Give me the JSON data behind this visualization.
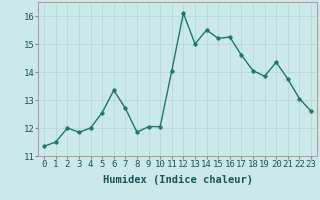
{
  "x": [
    0,
    1,
    2,
    3,
    4,
    5,
    6,
    7,
    8,
    9,
    10,
    11,
    12,
    13,
    14,
    15,
    16,
    17,
    18,
    19,
    20,
    21,
    22,
    23
  ],
  "y": [
    11.35,
    11.5,
    12.0,
    11.85,
    12.0,
    12.55,
    13.35,
    12.7,
    11.85,
    12.05,
    12.05,
    14.05,
    16.1,
    15.0,
    15.5,
    15.2,
    15.25,
    14.6,
    14.05,
    13.85,
    14.35,
    13.75,
    13.05,
    12.6
  ],
  "line_color": "#1a7a6a",
  "marker": "o",
  "marker_size": 2.5,
  "bg_color": "#cce9e9",
  "grid_color": "#b8d8d8",
  "axis_color": "#888888",
  "xlabel": "Humidex (Indice chaleur)",
  "ylabel": "",
  "xlim": [
    -0.5,
    23.5
  ],
  "ylim": [
    11,
    16.5
  ],
  "yticks": [
    11,
    12,
    13,
    14,
    15,
    16
  ],
  "xticks": [
    0,
    1,
    2,
    3,
    4,
    5,
    6,
    7,
    8,
    9,
    10,
    11,
    12,
    13,
    14,
    15,
    16,
    17,
    18,
    19,
    20,
    21,
    22,
    23
  ],
  "xlabel_fontsize": 7.5,
  "tick_fontsize": 6.5,
  "line_width": 1.0
}
